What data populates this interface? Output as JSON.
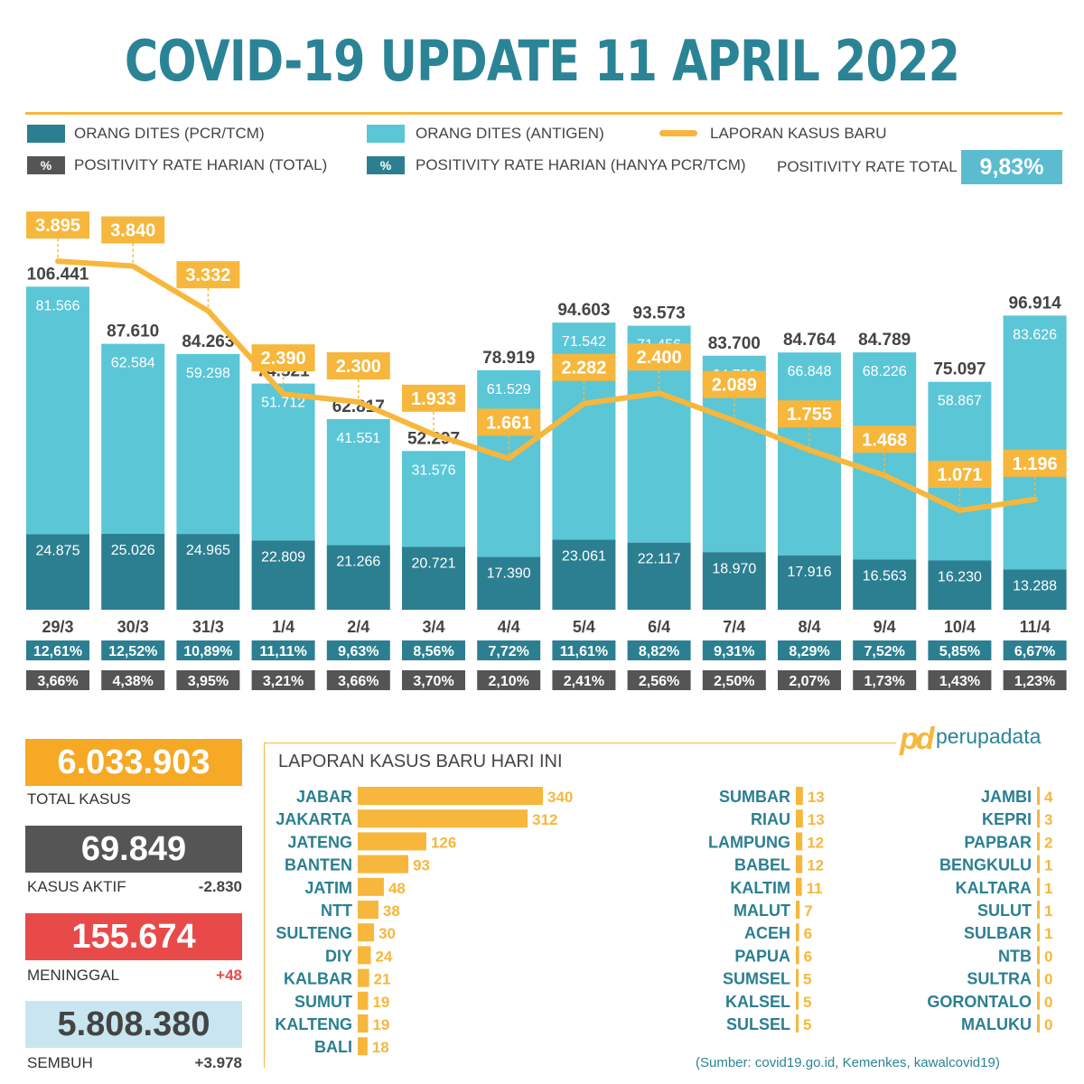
{
  "title": "COVID-19 UPDATE 11 APRIL 2022",
  "colors": {
    "teal_dark": "#2b7f91",
    "teal_light": "#5bc6d6",
    "orange": "#f6b73c",
    "gray": "#555555",
    "red": "#e84a4a",
    "light_blue": "#c9e6f0"
  },
  "legend": {
    "pcr": "ORANG DITES (PCR/TCM)",
    "antigen": "ORANG DITES (ANTIGEN)",
    "new_cases": "LAPORAN KASUS BARU",
    "pct_symbol": "%",
    "rate_total": "POSITIVITY RATE HARIAN (TOTAL)",
    "rate_pcr": "POSITIVITY RATE HARIAN (HANYA PCR/TCM)",
    "positivity_total_label": "POSITIVITY RATE TOTAL",
    "positivity_total_value": "9,83%"
  },
  "chart_data": {
    "type": "bar",
    "title": "COVID-19 UPDATE 11 APRIL 2022",
    "categories": [
      "29/3",
      "30/3",
      "31/3",
      "1/4",
      "2/4",
      "3/4",
      "4/4",
      "5/4",
      "6/4",
      "7/4",
      "8/4",
      "9/4",
      "10/4",
      "11/4"
    ],
    "totals": [
      106441,
      87610,
      84263,
      74521,
      62817,
      52297,
      78919,
      94603,
      93573,
      83700,
      84764,
      84789,
      75097,
      96914
    ],
    "totals_labels": [
      "106.441",
      "87.610",
      "84.263",
      "74.521",
      "62.817",
      "52.297",
      "78.919",
      "94.603",
      "93.573",
      "83.700",
      "84.764",
      "84.789",
      "75.097",
      "96.914"
    ],
    "series": [
      {
        "name": "ORANG DITES (PCR/TCM)",
        "values": [
          24875,
          25026,
          24965,
          22809,
          21266,
          20721,
          17390,
          23061,
          22117,
          18970,
          17916,
          16563,
          16230,
          13288
        ],
        "labels": [
          "24.875",
          "25.026",
          "24.965",
          "22.809",
          "21.266",
          "20.721",
          "17.390",
          "23.061",
          "22.117",
          "18.970",
          "17.916",
          "16.563",
          "16.230",
          "13.288"
        ]
      },
      {
        "name": "ORANG DITES (ANTIGEN)",
        "values": [
          81566,
          62584,
          59298,
          51712,
          41551,
          31576,
          61529,
          71542,
          71456,
          64730,
          66848,
          68226,
          58867,
          83626
        ],
        "labels": [
          "81.566",
          "62.584",
          "59.298",
          "51.712",
          "41.551",
          "31.576",
          "61.529",
          "71.542",
          "71.456",
          "64.730",
          "66.848",
          "68.226",
          "58.867",
          "83.626"
        ]
      },
      {
        "name": "LAPORAN KASUS BARU",
        "type": "line",
        "values": [
          3895,
          3840,
          3332,
          2390,
          2300,
          1933,
          1661,
          2282,
          2400,
          2089,
          1755,
          1468,
          1071,
          1196
        ],
        "labels": [
          "3.895",
          "3.840",
          "3.332",
          "2.390",
          "2.300",
          "1.933",
          "1.661",
          "2.282",
          "2.400",
          "2.089",
          "1.755",
          "1.468",
          "1.071",
          "1.196"
        ]
      }
    ],
    "positivity_pcr": [
      "12,61%",
      "12,52%",
      "10,89%",
      "11,11%",
      "9,63%",
      "8,56%",
      "7,72%",
      "11,61%",
      "8,82%",
      "9,31%",
      "8,29%",
      "7,52%",
      "5,85%",
      "6,67%"
    ],
    "positivity_total": [
      "3,66%",
      "4,38%",
      "3,95%",
      "3,21%",
      "3,66%",
      "3,70%",
      "2,10%",
      "2,41%",
      "2,56%",
      "2,50%",
      "2,07%",
      "1,73%",
      "1,43%",
      "1,23%"
    ]
  },
  "summary": {
    "total_cases": {
      "value": "6.033.903",
      "label": "TOTAL KASUS"
    },
    "active": {
      "value": "69.849",
      "label": "KASUS AKTIF",
      "delta": "-2.830"
    },
    "deaths": {
      "value": "155.674",
      "label": "MENINGGAL",
      "delta": "+48"
    },
    "recovered": {
      "value": "5.808.380",
      "label": "SEMBUH",
      "delta": "+3.978"
    }
  },
  "logo": {
    "mark": "pd",
    "text": "perupadata"
  },
  "provinces": {
    "title": "LAPORAN KASUS BARU HARI INI",
    "bars": [
      {
        "name": "JABAR",
        "value": 340
      },
      {
        "name": "JAKARTA",
        "value": 312
      },
      {
        "name": "JATENG",
        "value": 126
      },
      {
        "name": "BANTEN",
        "value": 93
      },
      {
        "name": "JATIM",
        "value": 48
      },
      {
        "name": "NTT",
        "value": 38
      },
      {
        "name": "SULTENG",
        "value": 30
      },
      {
        "name": "DIY",
        "value": 24
      },
      {
        "name": "KALBAR",
        "value": 21
      },
      {
        "name": "SUMUT",
        "value": 19
      },
      {
        "name": "KALTENG",
        "value": 19
      },
      {
        "name": "BALI",
        "value": 18
      }
    ],
    "col2": [
      {
        "name": "SUMBAR",
        "value": 13
      },
      {
        "name": "RIAU",
        "value": 13
      },
      {
        "name": "LAMPUNG",
        "value": 12
      },
      {
        "name": "BABEL",
        "value": 12
      },
      {
        "name": "KALTIM",
        "value": 11
      },
      {
        "name": "MALUT",
        "value": 7
      },
      {
        "name": "ACEH",
        "value": 6
      },
      {
        "name": "PAPUA",
        "value": 6
      },
      {
        "name": "SUMSEL",
        "value": 5
      },
      {
        "name": "KALSEL",
        "value": 5
      },
      {
        "name": "SULSEL",
        "value": 5
      }
    ],
    "col3": [
      {
        "name": "JAMBI",
        "value": 4
      },
      {
        "name": "KEPRI",
        "value": 3
      },
      {
        "name": "PAPBAR",
        "value": 2
      },
      {
        "name": "BENGKULU",
        "value": 1
      },
      {
        "name": "KALTARA",
        "value": 1
      },
      {
        "name": "SULUT",
        "value": 1
      },
      {
        "name": "SULBAR",
        "value": 1
      },
      {
        "name": "NTB",
        "value": 0
      },
      {
        "name": "SULTRA",
        "value": 0
      },
      {
        "name": "GORONTALO",
        "value": 0
      },
      {
        "name": "MALUKU",
        "value": 0
      }
    ]
  },
  "source": "(Sumber: covid19.go.id, Kemenkes, kawalcovid19)"
}
